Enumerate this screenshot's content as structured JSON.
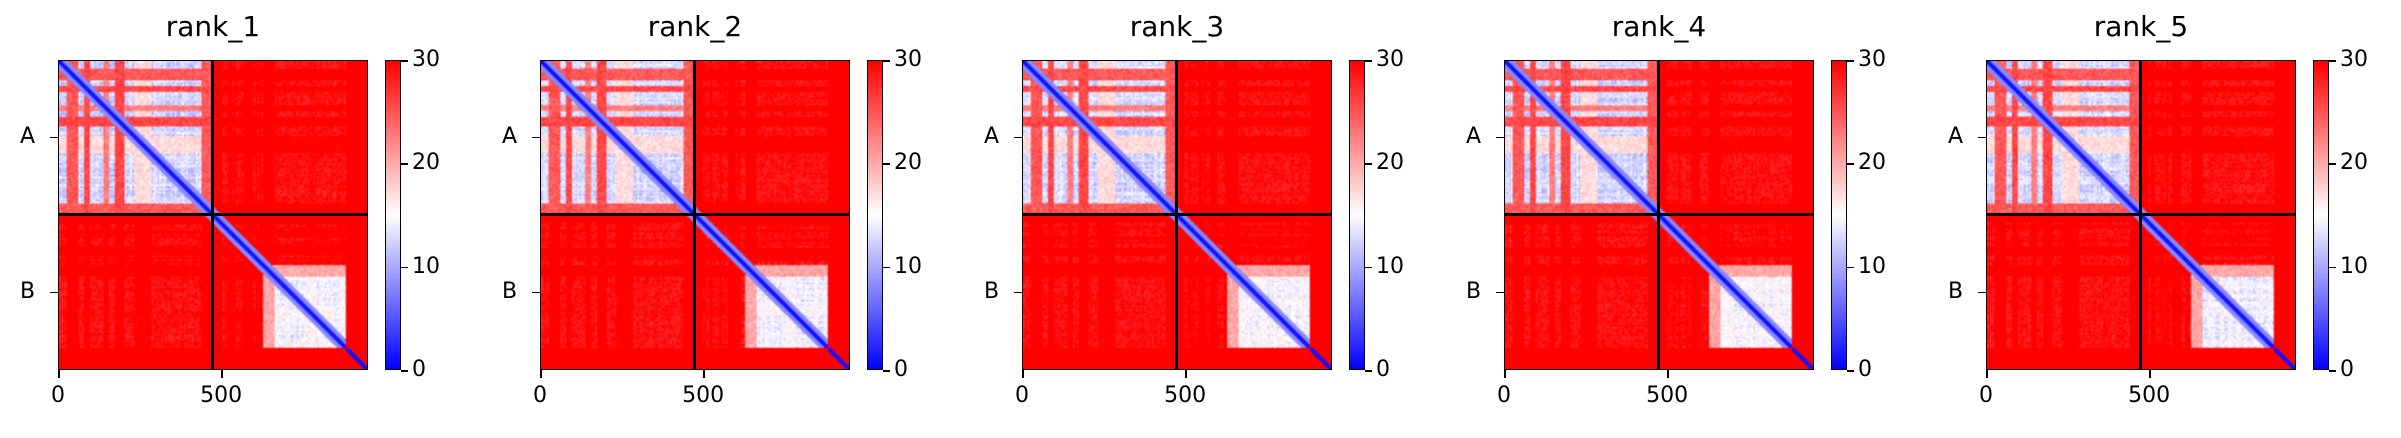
{
  "chart_data": [
    {
      "type": "heatmap",
      "title": "rank_1",
      "chains": [
        "A",
        "B"
      ],
      "xticks": [
        0,
        500
      ],
      "colorbar": {
        "min": 0,
        "max": 30,
        "ticks": [
          0,
          10,
          20,
          30
        ],
        "colors": [
          "#0000ff",
          "#ffffff",
          "#ff0000"
        ]
      }
    },
    {
      "type": "heatmap",
      "title": "rank_2",
      "chains": [
        "A",
        "B"
      ],
      "xticks": [
        0,
        500
      ],
      "colorbar": {
        "min": 0,
        "max": 30,
        "ticks": [
          0,
          10,
          20,
          30
        ],
        "colors": [
          "#0000ff",
          "#ffffff",
          "#ff0000"
        ]
      }
    },
    {
      "type": "heatmap",
      "title": "rank_3",
      "chains": [
        "A",
        "B"
      ],
      "xticks": [
        0,
        500
      ],
      "colorbar": {
        "min": 0,
        "max": 30,
        "ticks": [
          0,
          10,
          20,
          30
        ],
        "colors": [
          "#0000ff",
          "#ffffff",
          "#ff0000"
        ]
      }
    },
    {
      "type": "heatmap",
      "title": "rank_4",
      "chains": [
        "A",
        "B"
      ],
      "xticks": [
        0,
        500
      ],
      "colorbar": {
        "min": 0,
        "max": 30,
        "ticks": [
          0,
          10,
          20,
          30
        ],
        "colors": [
          "#0000ff",
          "#ffffff",
          "#ff0000"
        ]
      }
    },
    {
      "type": "heatmap",
      "title": "rank_5",
      "chains": [
        "A",
        "B"
      ],
      "xticks": [
        0,
        500
      ],
      "colorbar": {
        "min": 0,
        "max": 30,
        "ticks": [
          0,
          10,
          20,
          30
        ],
        "colors": [
          "#0000ff",
          "#ffffff",
          "#ff0000"
        ]
      }
    }
  ]
}
